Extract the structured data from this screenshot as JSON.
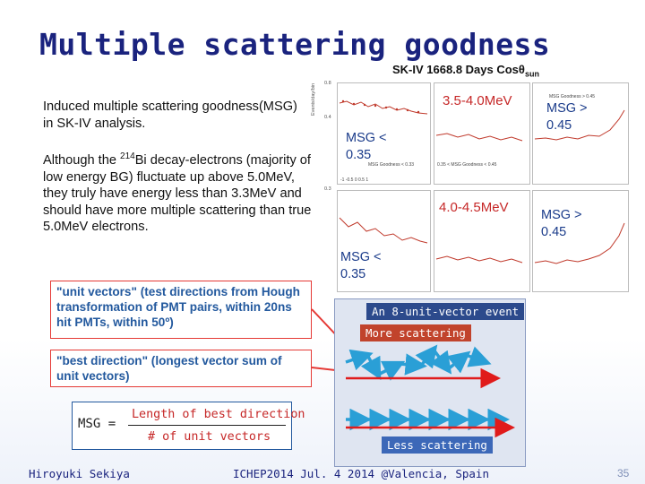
{
  "title": "Multiple scattering goodness",
  "plot_header_prefix": "SK-IV 1668.8 Days Cos",
  "plot_header_theta": "θ",
  "plot_header_sub": "sun",
  "text": {
    "p1": "Induced multiple scattering goodness(MSG) in SK-IV analysis.",
    "p2_before": "Although the ",
    "p2_sup": "214",
    "p2_after": "Bi decay-electrons (majority of low energy BG) fluctuate up above 5.0MeV, they truly have energy less than 3.3MeV and should have more multiple scattering than true 5.0MeV electrons."
  },
  "callouts": {
    "unit_vectors": "\"unit vectors\" (test directions from Hough transformation of PMT pairs, within 20ns hit PMTs, within 50º)",
    "best_direction": "\"best direction\" (longest vector sum of unit vectors)"
  },
  "msg_formula": {
    "lhs": "MSG =",
    "numerator": "Length of best direction",
    "denominator": "# of unit vectors"
  },
  "plots": {
    "row1_energy": "3.5-4.0MeV",
    "row2_energy": "4.0-4.5MeV",
    "row1_left_msg": "MSG < 0.35",
    "row1_right_msg": "MSG > 0.45",
    "row2_left_msg": "MSG < 0.35",
    "row2_right_msg": "MSG > 0.45",
    "y_axis_label": "Events/day/bin",
    "tiny_left": "MSG Goodness < 0.35",
    "tiny_mid": "0.35 < MSG Goodness < 0.45",
    "tiny_right": "MSG Goodness > 0.45",
    "tiny_axis": "-1 -0.5 0 0.5 1 cosθsun"
  },
  "event": {
    "title": "An 8-unit-vector event",
    "more": "More scattering",
    "less": "Less scattering"
  },
  "footer": {
    "author": "Hiroyuki Sekiya",
    "conference": "ICHEP2014  Jul. 4 2014  @Valencia, Spain",
    "page": "35"
  },
  "colors": {
    "title": "#1a237e",
    "accent_red": "#c62828",
    "msg_blue": "#1a3b8a",
    "event_tag": "#2c4a8c",
    "more_tag": "#c1432c",
    "less_tag": "#3c68b8",
    "arrow_teal": "#2a9fd6",
    "arrow_red": "#e01b1b"
  }
}
